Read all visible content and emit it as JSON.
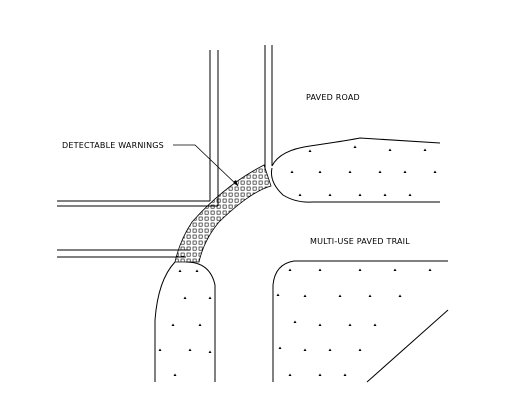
{
  "labels": {
    "paved_road": "PAVED ROAD",
    "detectable_warnings": "DETECTABLE WARNINGS",
    "multi_use_trail": "MULTI-USE PAVED TRAIL"
  },
  "colors": {
    "line": "#000000",
    "background": "#ffffff"
  }
}
